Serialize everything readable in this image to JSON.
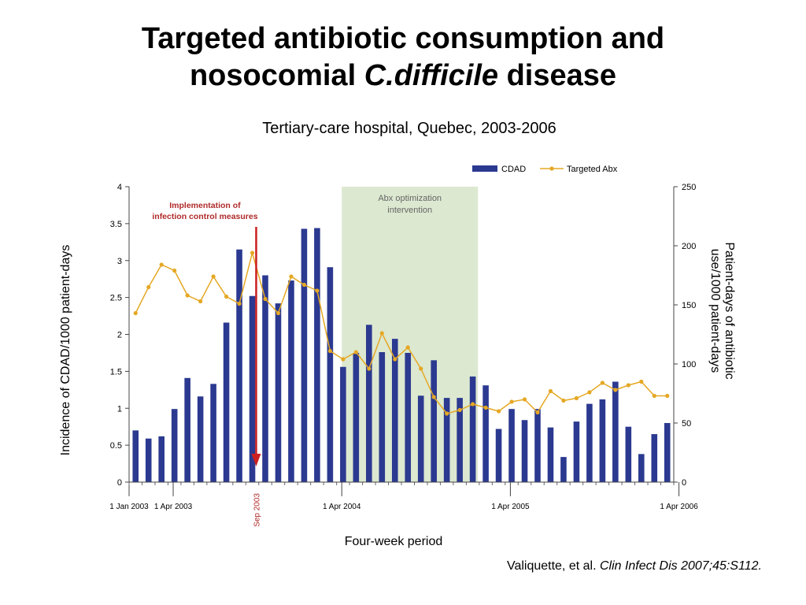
{
  "slide": {
    "title_line1": "Targeted antibiotic consumption and",
    "title_line2_pre": "nosocomial ",
    "title_line2_italic": "C.difficile",
    "title_line2_post": " disease",
    "subtitle": "Tertiary-care hospital, Quebec, 2003-2006",
    "citation_pre": "Valiquette, et al. ",
    "citation_italic": "Clin Infect Dis 2007;45:S112."
  },
  "colors": {
    "bar": "#2b3990",
    "line": "#e5a824",
    "intervention_band": "#dce8d0",
    "arrow": "#cc2020"
  },
  "chart_data": {
    "type": "bar",
    "xlabel": "Four-week period",
    "ylabel": "Incidence of CDAD/1000 patient-days",
    "y2label_line1": "Patient-days of antibiotic",
    "y2label_line2": "use/1000 patient-days",
    "ylim": [
      0,
      4
    ],
    "y2lim": [
      0,
      250
    ],
    "yticks": [
      "0",
      "0.5",
      "1",
      "1.5",
      "2",
      "2.5",
      "3",
      "3.5",
      "4"
    ],
    "y2ticks": [
      "0",
      "50",
      "100",
      "150",
      "200",
      "250"
    ],
    "xticks": [
      {
        "label": "1 Jan 2003",
        "period": 0
      },
      {
        "label": "1 Apr 2003",
        "period": 3.4
      },
      {
        "label": "1 Apr 2004",
        "period": 16.4
      },
      {
        "label": "1 Apr 2005",
        "period": 29.4
      },
      {
        "label": "1 Apr 2006",
        "period": 42.4
      }
    ],
    "annotations": {
      "sep_2003_label": "Sep 2003",
      "sep_2003_period": 9.8,
      "infection_control_line1": "Implementation of",
      "infection_control_line2": "infection control measures",
      "abx_band_line1": "Abx optimization",
      "abx_band_line2": "intervention",
      "abx_band_start_period": 16.4,
      "abx_band_end_period": 26.9
    },
    "legend": {
      "placement": "top-right",
      "bar_label": "CDAD",
      "line_label": "Targeted Abx"
    },
    "series": [
      {
        "name": "CDAD",
        "type": "bar",
        "axis": "left",
        "values": [
          0.7,
          0.59,
          0.62,
          0.99,
          1.41,
          1.16,
          1.33,
          2.16,
          3.15,
          2.52,
          2.8,
          2.42,
          2.73,
          3.43,
          3.44,
          2.91,
          1.56,
          1.75,
          2.13,
          1.76,
          1.94,
          1.75,
          1.17,
          1.65,
          1.14,
          1.14,
          1.43,
          1.31,
          0.72,
          0.99,
          0.84,
          0.99,
          0.74,
          0.34,
          0.82,
          1.06,
          1.12,
          1.36,
          0.75,
          0.38,
          0.65,
          0.8
        ]
      },
      {
        "name": "Targeted Abx",
        "type": "line",
        "axis": "right",
        "values": [
          143,
          165,
          184,
          179,
          158,
          153,
          174,
          157,
          151,
          194,
          155,
          143,
          174,
          167,
          162,
          111,
          104,
          110,
          96,
          126,
          104,
          114,
          96,
          72,
          58,
          61,
          66,
          63,
          60,
          68,
          70,
          59,
          77,
          69,
          71,
          76,
          84,
          78,
          82,
          85,
          73,
          73
        ]
      }
    ]
  }
}
